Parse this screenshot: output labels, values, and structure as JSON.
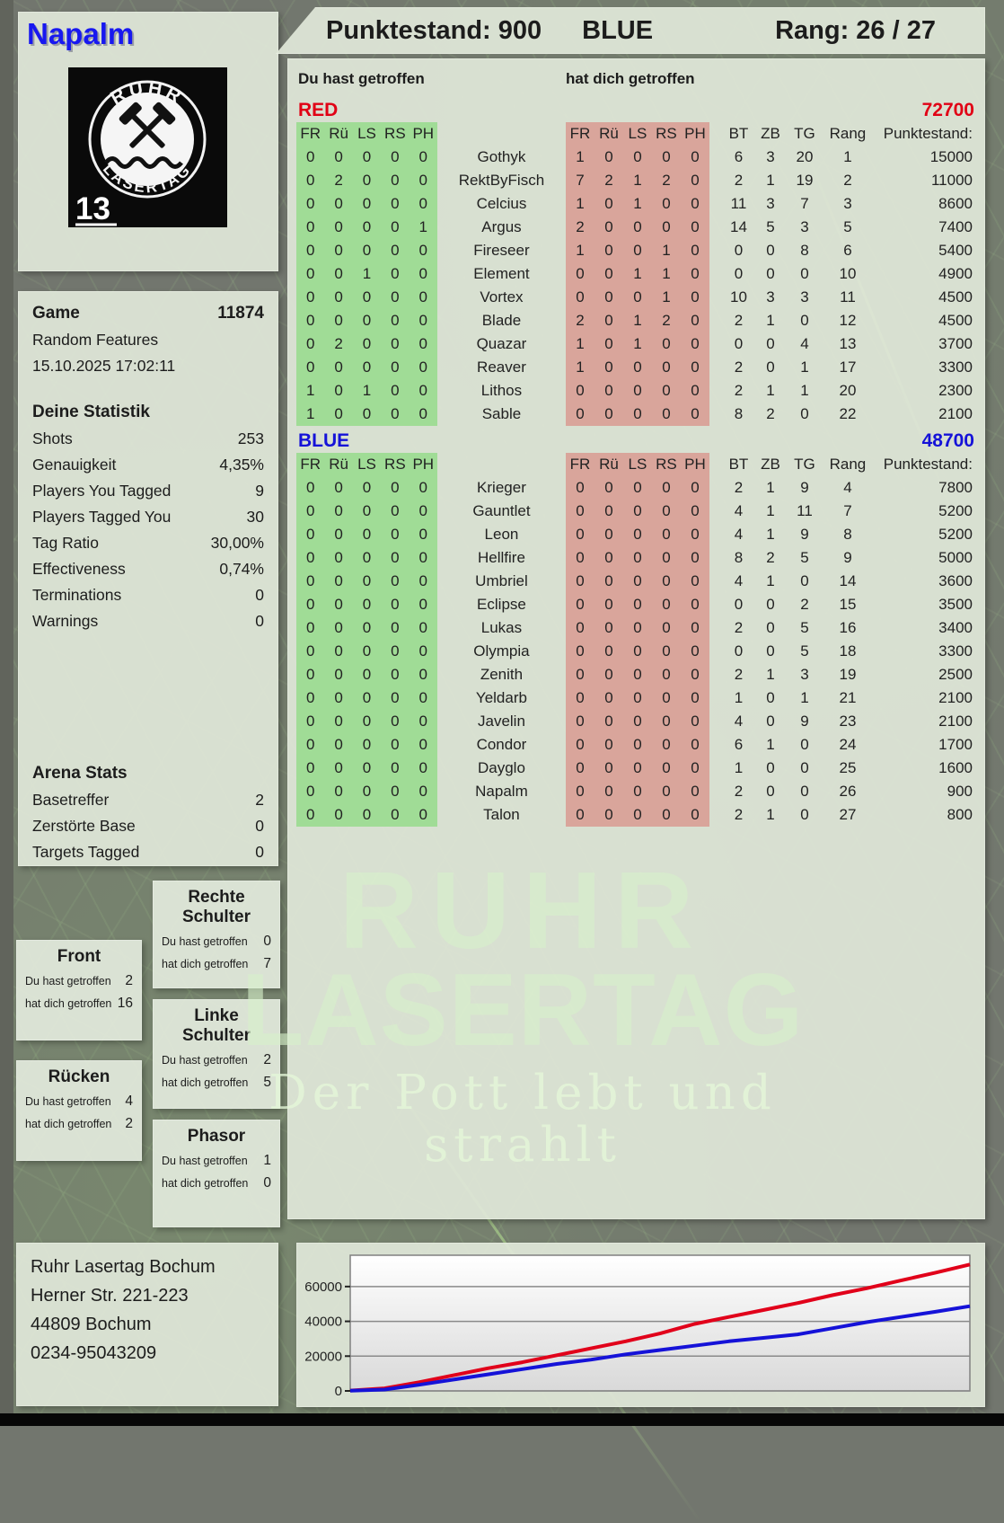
{
  "header": {
    "player_name": "Napalm",
    "score_text": "Punktestand: 900",
    "team": "BLUE",
    "rank_text": "Rang: 26 / 27"
  },
  "logo": {
    "top_text": "RUHR",
    "bottom_text": "LASERTAG",
    "badge_number": "13",
    "icon": "crossed-hammers-icon"
  },
  "game_info": {
    "label": "Game",
    "number": "11874",
    "mode": "Random Features",
    "datetime": "15.10.2025 17:02:11"
  },
  "your_stats": {
    "title": "Deine Statistik",
    "rows": [
      {
        "label": "Shots",
        "value": "253"
      },
      {
        "label": "Genauigkeit",
        "value": "4,35%"
      },
      {
        "label": "Players You Tagged",
        "value": "9"
      },
      {
        "label": "Players Tagged You",
        "value": "30"
      },
      {
        "label": "Tag Ratio",
        "value": "30,00%"
      },
      {
        "label": "Effectiveness",
        "value": "0,74%"
      },
      {
        "label": "Terminations",
        "value": "0"
      },
      {
        "label": "Warnings",
        "value": "0"
      }
    ]
  },
  "arena_stats": {
    "title": "Arena Stats",
    "rows": [
      {
        "label": "Basetreffer",
        "value": "2"
      },
      {
        "label": "Zerstörte Base",
        "value": "0"
      },
      {
        "label": "Targets Tagged",
        "value": "0"
      }
    ]
  },
  "hit_labels": {
    "you": "Du hast getroffen",
    "them": "hat dich getroffen"
  },
  "table_columns": {
    "hit": [
      "FR",
      "Rü",
      "LS",
      "RS",
      "PH"
    ],
    "stats": [
      "BT",
      "ZB",
      "TG",
      "Rang",
      "Punktestand:"
    ]
  },
  "red_team": {
    "name": "RED",
    "total": "72700",
    "color": "#e10015",
    "rows": [
      {
        "name": "Gothyk",
        "you": [
          "0",
          "0",
          "0",
          "0",
          "0"
        ],
        "them": [
          "1",
          "0",
          "0",
          "0",
          "0"
        ],
        "bt": "6",
        "zb": "3",
        "tg": "20",
        "rang": "1",
        "punkte": "15000"
      },
      {
        "name": "RektByFisch",
        "you": [
          "0",
          "2",
          "0",
          "0",
          "0"
        ],
        "them": [
          "7",
          "2",
          "1",
          "2",
          "0"
        ],
        "bt": "2",
        "zb": "1",
        "tg": "19",
        "rang": "2",
        "punkte": "11000"
      },
      {
        "name": "Celcius",
        "you": [
          "0",
          "0",
          "0",
          "0",
          "0"
        ],
        "them": [
          "1",
          "0",
          "1",
          "0",
          "0"
        ],
        "bt": "11",
        "zb": "3",
        "tg": "7",
        "rang": "3",
        "punkte": "8600"
      },
      {
        "name": "Argus",
        "you": [
          "0",
          "0",
          "0",
          "0",
          "1"
        ],
        "them": [
          "2",
          "0",
          "0",
          "0",
          "0"
        ],
        "bt": "14",
        "zb": "5",
        "tg": "3",
        "rang": "5",
        "punkte": "7400"
      },
      {
        "name": "Fireseer",
        "you": [
          "0",
          "0",
          "0",
          "0",
          "0"
        ],
        "them": [
          "1",
          "0",
          "0",
          "1",
          "0"
        ],
        "bt": "0",
        "zb": "0",
        "tg": "8",
        "rang": "6",
        "punkte": "5400"
      },
      {
        "name": "Element",
        "you": [
          "0",
          "0",
          "1",
          "0",
          "0"
        ],
        "them": [
          "0",
          "0",
          "1",
          "1",
          "0"
        ],
        "bt": "0",
        "zb": "0",
        "tg": "0",
        "rang": "10",
        "punkte": "4900"
      },
      {
        "name": "Vortex",
        "you": [
          "0",
          "0",
          "0",
          "0",
          "0"
        ],
        "them": [
          "0",
          "0",
          "0",
          "1",
          "0"
        ],
        "bt": "10",
        "zb": "3",
        "tg": "3",
        "rang": "11",
        "punkte": "4500"
      },
      {
        "name": "Blade",
        "you": [
          "0",
          "0",
          "0",
          "0",
          "0"
        ],
        "them": [
          "2",
          "0",
          "1",
          "2",
          "0"
        ],
        "bt": "2",
        "zb": "1",
        "tg": "0",
        "rang": "12",
        "punkte": "4500"
      },
      {
        "name": "Quazar",
        "you": [
          "0",
          "2",
          "0",
          "0",
          "0"
        ],
        "them": [
          "1",
          "0",
          "1",
          "0",
          "0"
        ],
        "bt": "0",
        "zb": "0",
        "tg": "4",
        "rang": "13",
        "punkte": "3700"
      },
      {
        "name": "Reaver",
        "you": [
          "0",
          "0",
          "0",
          "0",
          "0"
        ],
        "them": [
          "1",
          "0",
          "0",
          "0",
          "0"
        ],
        "bt": "2",
        "zb": "0",
        "tg": "1",
        "rang": "17",
        "punkte": "3300"
      },
      {
        "name": "Lithos",
        "you": [
          "1",
          "0",
          "1",
          "0",
          "0"
        ],
        "them": [
          "0",
          "0",
          "0",
          "0",
          "0"
        ],
        "bt": "2",
        "zb": "1",
        "tg": "1",
        "rang": "20",
        "punkte": "2300"
      },
      {
        "name": "Sable",
        "you": [
          "1",
          "0",
          "0",
          "0",
          "0"
        ],
        "them": [
          "0",
          "0",
          "0",
          "0",
          "0"
        ],
        "bt": "8",
        "zb": "2",
        "tg": "0",
        "rang": "22",
        "punkte": "2100"
      }
    ]
  },
  "blue_team": {
    "name": "BLUE",
    "total": "48700",
    "color": "#1512d8",
    "rows": [
      {
        "name": "Krieger",
        "you": [
          "0",
          "0",
          "0",
          "0",
          "0"
        ],
        "them": [
          "0",
          "0",
          "0",
          "0",
          "0"
        ],
        "bt": "2",
        "zb": "1",
        "tg": "9",
        "rang": "4",
        "punkte": "7800"
      },
      {
        "name": "Gauntlet",
        "you": [
          "0",
          "0",
          "0",
          "0",
          "0"
        ],
        "them": [
          "0",
          "0",
          "0",
          "0",
          "0"
        ],
        "bt": "4",
        "zb": "1",
        "tg": "11",
        "rang": "7",
        "punkte": "5200"
      },
      {
        "name": "Leon",
        "you": [
          "0",
          "0",
          "0",
          "0",
          "0"
        ],
        "them": [
          "0",
          "0",
          "0",
          "0",
          "0"
        ],
        "bt": "4",
        "zb": "1",
        "tg": "9",
        "rang": "8",
        "punkte": "5200"
      },
      {
        "name": "Hellfire",
        "you": [
          "0",
          "0",
          "0",
          "0",
          "0"
        ],
        "them": [
          "0",
          "0",
          "0",
          "0",
          "0"
        ],
        "bt": "8",
        "zb": "2",
        "tg": "5",
        "rang": "9",
        "punkte": "5000"
      },
      {
        "name": "Umbriel",
        "you": [
          "0",
          "0",
          "0",
          "0",
          "0"
        ],
        "them": [
          "0",
          "0",
          "0",
          "0",
          "0"
        ],
        "bt": "4",
        "zb": "1",
        "tg": "0",
        "rang": "14",
        "punkte": "3600"
      },
      {
        "name": "Eclipse",
        "you": [
          "0",
          "0",
          "0",
          "0",
          "0"
        ],
        "them": [
          "0",
          "0",
          "0",
          "0",
          "0"
        ],
        "bt": "0",
        "zb": "0",
        "tg": "2",
        "rang": "15",
        "punkte": "3500"
      },
      {
        "name": "Lukas",
        "you": [
          "0",
          "0",
          "0",
          "0",
          "0"
        ],
        "them": [
          "0",
          "0",
          "0",
          "0",
          "0"
        ],
        "bt": "2",
        "zb": "0",
        "tg": "5",
        "rang": "16",
        "punkte": "3400"
      },
      {
        "name": "Olympia",
        "you": [
          "0",
          "0",
          "0",
          "0",
          "0"
        ],
        "them": [
          "0",
          "0",
          "0",
          "0",
          "0"
        ],
        "bt": "0",
        "zb": "0",
        "tg": "5",
        "rang": "18",
        "punkte": "3300"
      },
      {
        "name": "Zenith",
        "you": [
          "0",
          "0",
          "0",
          "0",
          "0"
        ],
        "them": [
          "0",
          "0",
          "0",
          "0",
          "0"
        ],
        "bt": "2",
        "zb": "1",
        "tg": "3",
        "rang": "19",
        "punkte": "2500"
      },
      {
        "name": "Yeldarb",
        "you": [
          "0",
          "0",
          "0",
          "0",
          "0"
        ],
        "them": [
          "0",
          "0",
          "0",
          "0",
          "0"
        ],
        "bt": "1",
        "zb": "0",
        "tg": "1",
        "rang": "21",
        "punkte": "2100"
      },
      {
        "name": "Javelin",
        "you": [
          "0",
          "0",
          "0",
          "0",
          "0"
        ],
        "them": [
          "0",
          "0",
          "0",
          "0",
          "0"
        ],
        "bt": "4",
        "zb": "0",
        "tg": "9",
        "rang": "23",
        "punkte": "2100"
      },
      {
        "name": "Condor",
        "you": [
          "0",
          "0",
          "0",
          "0",
          "0"
        ],
        "them": [
          "0",
          "0",
          "0",
          "0",
          "0"
        ],
        "bt": "6",
        "zb": "1",
        "tg": "0",
        "rang": "24",
        "punkte": "1700"
      },
      {
        "name": "Dayglo",
        "you": [
          "0",
          "0",
          "0",
          "0",
          "0"
        ],
        "them": [
          "0",
          "0",
          "0",
          "0",
          "0"
        ],
        "bt": "1",
        "zb": "0",
        "tg": "0",
        "rang": "25",
        "punkte": "1600"
      },
      {
        "name": "Napalm",
        "you": [
          "0",
          "0",
          "0",
          "0",
          "0"
        ],
        "them": [
          "0",
          "0",
          "0",
          "0",
          "0"
        ],
        "bt": "2",
        "zb": "0",
        "tg": "0",
        "rang": "26",
        "punkte": "900"
      },
      {
        "name": "Talon",
        "you": [
          "0",
          "0",
          "0",
          "0",
          "0"
        ],
        "them": [
          "0",
          "0",
          "0",
          "0",
          "0"
        ],
        "bt": "2",
        "zb": "1",
        "tg": "0",
        "rang": "27",
        "punkte": "800"
      }
    ]
  },
  "body_parts": [
    {
      "title": "Rechte Schulter",
      "you": "0",
      "them": "7"
    },
    {
      "title": "Front",
      "you": "2",
      "them": "16"
    },
    {
      "title": "Linke Schulter",
      "you": "2",
      "them": "5"
    },
    {
      "title": "Rücken",
      "you": "4",
      "them": "2"
    },
    {
      "title": "Phasor",
      "you": "1",
      "them": "0"
    }
  ],
  "watermark": {
    "line1": "RUHR",
    "line2": "LASERTAG",
    "line3": "Der Pott lebt und strahlt"
  },
  "address": {
    "lines": [
      "Ruhr Lasertag Bochum",
      "Herner Str. 221-223",
      "44809 Bochum",
      "0234-95043209"
    ]
  },
  "chart_data": {
    "type": "line",
    "title": "",
    "xlabel": "",
    "ylabel": "",
    "ylim": [
      0,
      78000
    ],
    "y_ticks": [
      0,
      20000,
      40000,
      60000
    ],
    "grid": true,
    "legend": "none",
    "series": [
      {
        "name": "RED team score",
        "color": "#e1001a",
        "values": [
          200,
          1500,
          5000,
          9000,
          13000,
          16500,
          20500,
          24500,
          28500,
          33000,
          38500,
          42500,
          46500,
          50500,
          55000,
          59000,
          63500,
          68000,
          72700
        ]
      },
      {
        "name": "BLUE team score",
        "color": "#1512d8",
        "values": [
          100,
          800,
          3500,
          6500,
          9500,
          12500,
          15500,
          18000,
          21000,
          23500,
          26000,
          28500,
          30500,
          32500,
          36000,
          39500,
          42500,
          45500,
          48700
        ]
      }
    ]
  }
}
